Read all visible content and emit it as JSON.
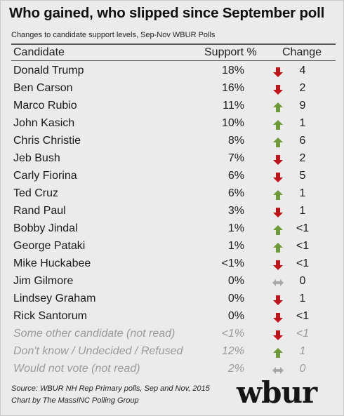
{
  "chart_data": {
    "type": "table",
    "title": "Who gained, who slipped since September poll",
    "subtitle": "Changes to candidate support levels, Sep-Nov WBUR Polls",
    "columns": [
      "Candidate",
      "Support %",
      "Change"
    ],
    "rows": [
      {
        "candidate": "Donald Trump",
        "support": "18%",
        "direction": "down",
        "change": "4",
        "italic": false
      },
      {
        "candidate": "Ben Carson",
        "support": "16%",
        "direction": "down",
        "change": "2",
        "italic": false
      },
      {
        "candidate": "Marco Rubio",
        "support": "11%",
        "direction": "up",
        "change": "9",
        "italic": false
      },
      {
        "candidate": "John Kasich",
        "support": "10%",
        "direction": "up",
        "change": "1",
        "italic": false
      },
      {
        "candidate": "Chris Christie",
        "support": "8%",
        "direction": "up",
        "change": "6",
        "italic": false
      },
      {
        "candidate": "Jeb Bush",
        "support": "7%",
        "direction": "down",
        "change": "2",
        "italic": false
      },
      {
        "candidate": "Carly Fiorina",
        "support": "6%",
        "direction": "down",
        "change": "5",
        "italic": false
      },
      {
        "candidate": "Ted Cruz",
        "support": "6%",
        "direction": "up",
        "change": "1",
        "italic": false
      },
      {
        "candidate": "Rand Paul",
        "support": "3%",
        "direction": "down",
        "change": "1",
        "italic": false
      },
      {
        "candidate": "Bobby Jindal",
        "support": "1%",
        "direction": "up",
        "change": "<1",
        "italic": false
      },
      {
        "candidate": "George Pataki",
        "support": "1%",
        "direction": "up",
        "change": "<1",
        "italic": false
      },
      {
        "candidate": "Mike Huckabee",
        "support": "<1%",
        "direction": "down",
        "change": "<1",
        "italic": false
      },
      {
        "candidate": "Jim Gilmore",
        "support": "0%",
        "direction": "flat",
        "change": "0",
        "italic": false
      },
      {
        "candidate": "Lindsey Graham",
        "support": "0%",
        "direction": "down",
        "change": "1",
        "italic": false
      },
      {
        "candidate": "Rick Santorum",
        "support": "0%",
        "direction": "down",
        "change": "<1",
        "italic": false
      },
      {
        "candidate": "Some other candidate (not read)",
        "support": "<1%",
        "direction": "down",
        "change": "<1",
        "italic": true
      },
      {
        "candidate": "Don't know / Undecided / Refused",
        "support": "12%",
        "direction": "up",
        "change": "1",
        "italic": true
      },
      {
        "candidate": "Would not vote (not read)",
        "support": "2%",
        "direction": "flat",
        "change": "0",
        "italic": true
      }
    ],
    "colors": {
      "up": "#6f9a3a",
      "down": "#c0141b",
      "flat": "#a8a8a8"
    }
  },
  "source_line": "Source: WBUR NH Rep Primary polls, Sep and Nov, 2015",
  "credit_line": "Chart by The MassINC Polling Group",
  "logo_text": "wbur"
}
